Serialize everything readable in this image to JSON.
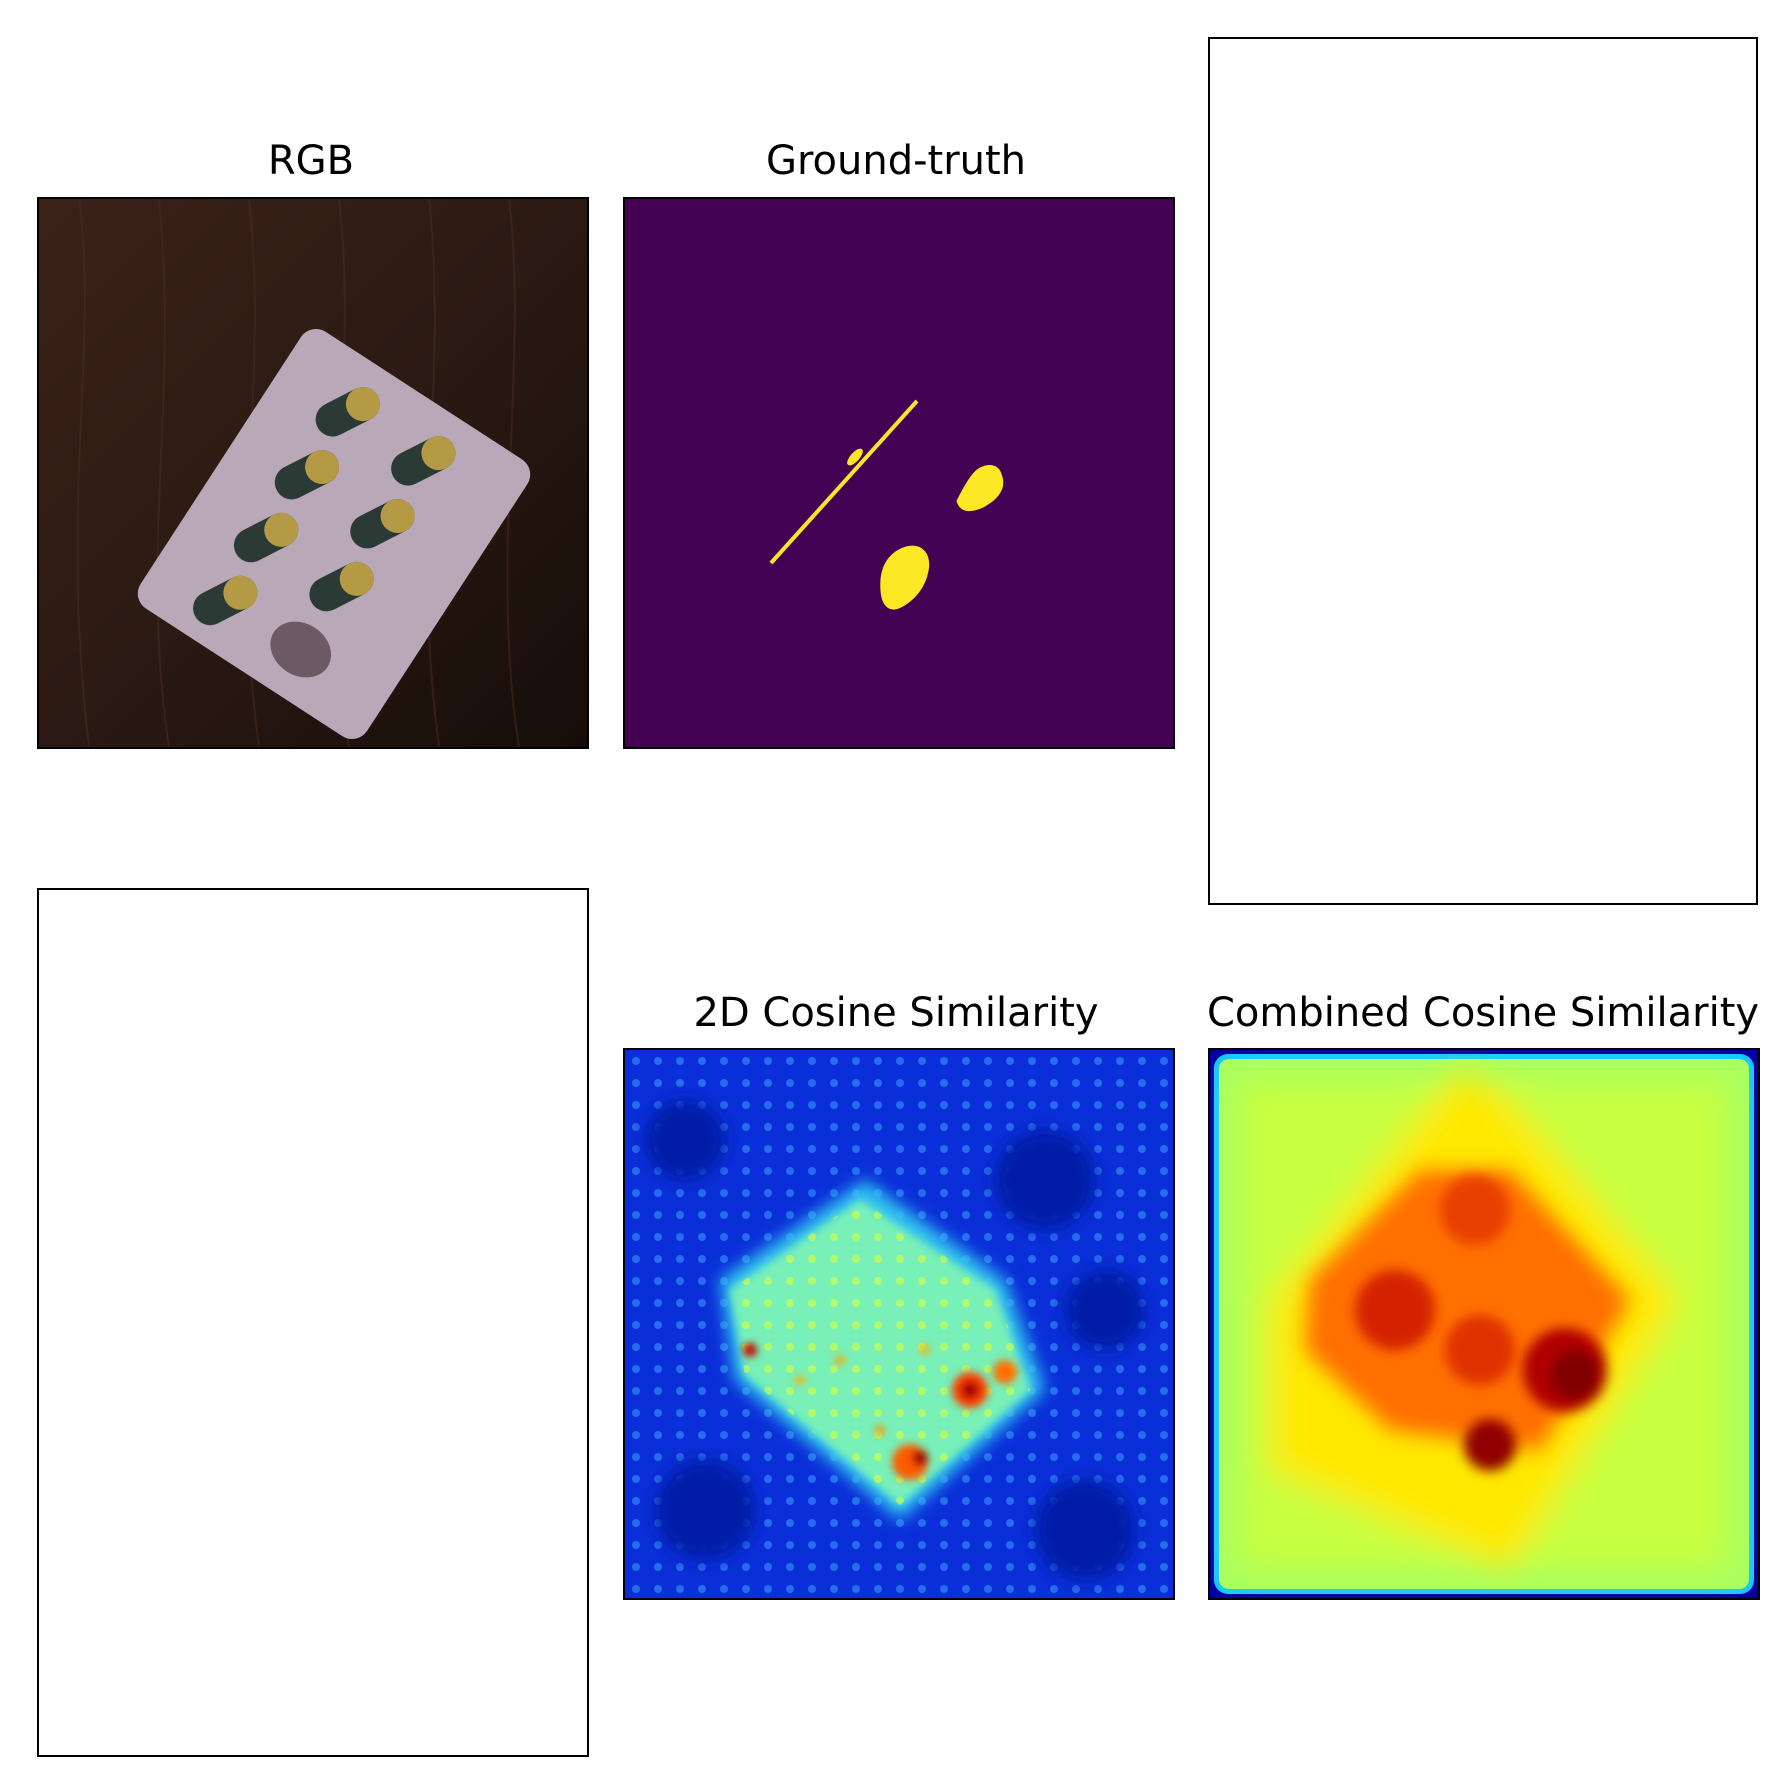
{
  "figure": {
    "panels": [
      {
        "id": "rgb",
        "title": "RGB",
        "content": "blister pack of yellow and dark green capsules on a dark wooden surface"
      },
      {
        "id": "ground_truth",
        "title": "Ground-truth",
        "background_color": "#440154",
        "mask_color": "#fde725"
      },
      {
        "id": "blank_top_right",
        "title": ""
      },
      {
        "id": "blank_bottom_left",
        "title": ""
      },
      {
        "id": "cos2d",
        "title": "2D Cosine Similarity",
        "colormap": "jet"
      },
      {
        "id": "combined",
        "title": "Combined Cosine Similarity",
        "colormap": "jet"
      }
    ]
  },
  "colors": {
    "viridis_low": "#440154",
    "viridis_high": "#fde725",
    "jet_low": "#00008f",
    "jet_mid": "#7fff7f",
    "jet_high": "#800000"
  }
}
